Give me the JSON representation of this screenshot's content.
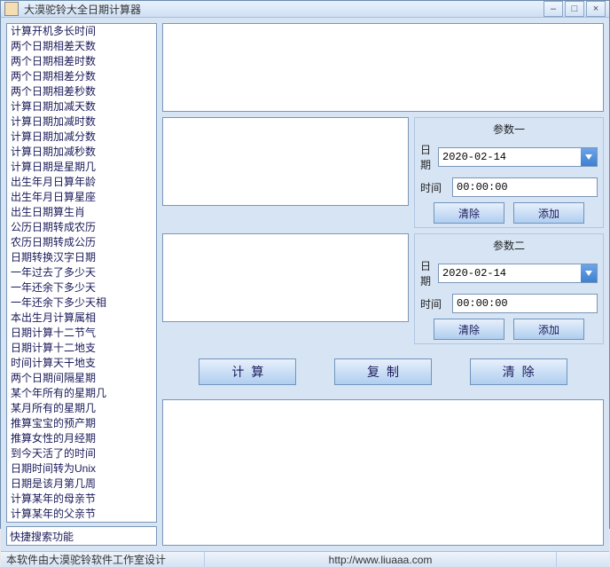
{
  "window": {
    "title": "大漠驼铃大全日期计算器"
  },
  "sidebar": {
    "items": [
      "计算开机多长时间",
      "两个日期相差天数",
      "两个日期相差时数",
      "两个日期相差分数",
      "两个日期相差秒数",
      "计算日期加减天数",
      "计算日期加减时数",
      "计算日期加减分数",
      "计算日期加减秒数",
      "计算日期是星期几",
      "出生年月日算年龄",
      "出生年月日算星座",
      "出生日期算生肖",
      "公历日期转成农历",
      "农历日期转成公历",
      "日期转换汉字日期",
      "一年过去了多少天",
      "一年还余下多少天",
      "一年还余下多少天相",
      "本出生月计算属相",
      "日期计算十二节气",
      "日期计算十二地支",
      "时间计算天干地支",
      "两个日期间隔星期",
      "某个年所有的星期几",
      "某月所有的星期几",
      "推算宝宝的预产期",
      "推算女性的月经期",
      "到今天活了的时间",
      "日期时间转为Unix",
      "日期是该月第几周",
      "计算某年的母亲节",
      "计算某年的父亲节"
    ],
    "search_placeholder": "快捷搜索功能"
  },
  "params1": {
    "title": "参数一",
    "date_label": "日期",
    "date_value": "2020-02-14",
    "time_label": "时间",
    "time_value": "00:00:00",
    "clear_label": "清除",
    "add_label": "添加"
  },
  "params2": {
    "title": "参数二",
    "date_label": "日期",
    "date_value": "2020-02-14",
    "time_label": "时间",
    "time_value": "00:00:00",
    "clear_label": "清除",
    "add_label": "添加"
  },
  "actions": {
    "calc": "计算",
    "copy": "复制",
    "clear": "清除"
  },
  "status": {
    "credit": "本软件由大漠驼铃软件工作室设计",
    "url": "http://www.liuaaa.com"
  }
}
